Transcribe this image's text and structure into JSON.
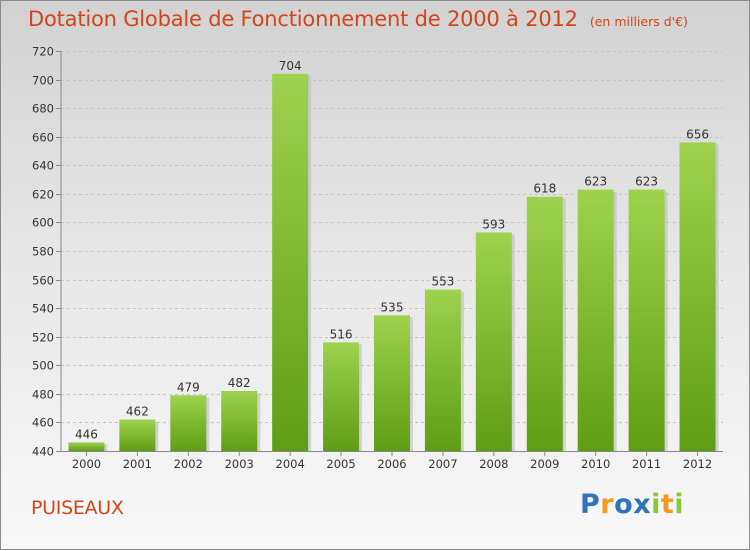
{
  "header": {
    "title": "Dotation Globale de Fonctionnement de 2000 à 2012",
    "units": "(en milliers d'€)"
  },
  "footer": {
    "commune": "PUISEAUX",
    "brand": [
      "P",
      "r",
      "o",
      "x",
      "i",
      "t",
      "i"
    ]
  },
  "colors": {
    "title": "#d2451b",
    "bar_light": "#9ed24e",
    "bar_dark": "#5e9e14",
    "brand_letters": [
      "#2f73b9",
      "#f19a1e",
      "#2f73b9",
      "#2f73b9",
      "#8cc63f",
      "#f19a1e",
      "#8cc63f"
    ]
  },
  "chart_data": {
    "type": "bar",
    "categories": [
      "2000",
      "2001",
      "2002",
      "2003",
      "2004",
      "2005",
      "2006",
      "2007",
      "2008",
      "2009",
      "2010",
      "2011",
      "2012"
    ],
    "values": [
      446,
      462,
      479,
      482,
      704,
      516,
      535,
      553,
      593,
      618,
      623,
      623,
      656
    ],
    "yticks": [
      440,
      460,
      480,
      500,
      520,
      540,
      560,
      580,
      600,
      620,
      640,
      660,
      680,
      700,
      720
    ],
    "ylim": [
      440,
      720
    ],
    "grid": true
  }
}
